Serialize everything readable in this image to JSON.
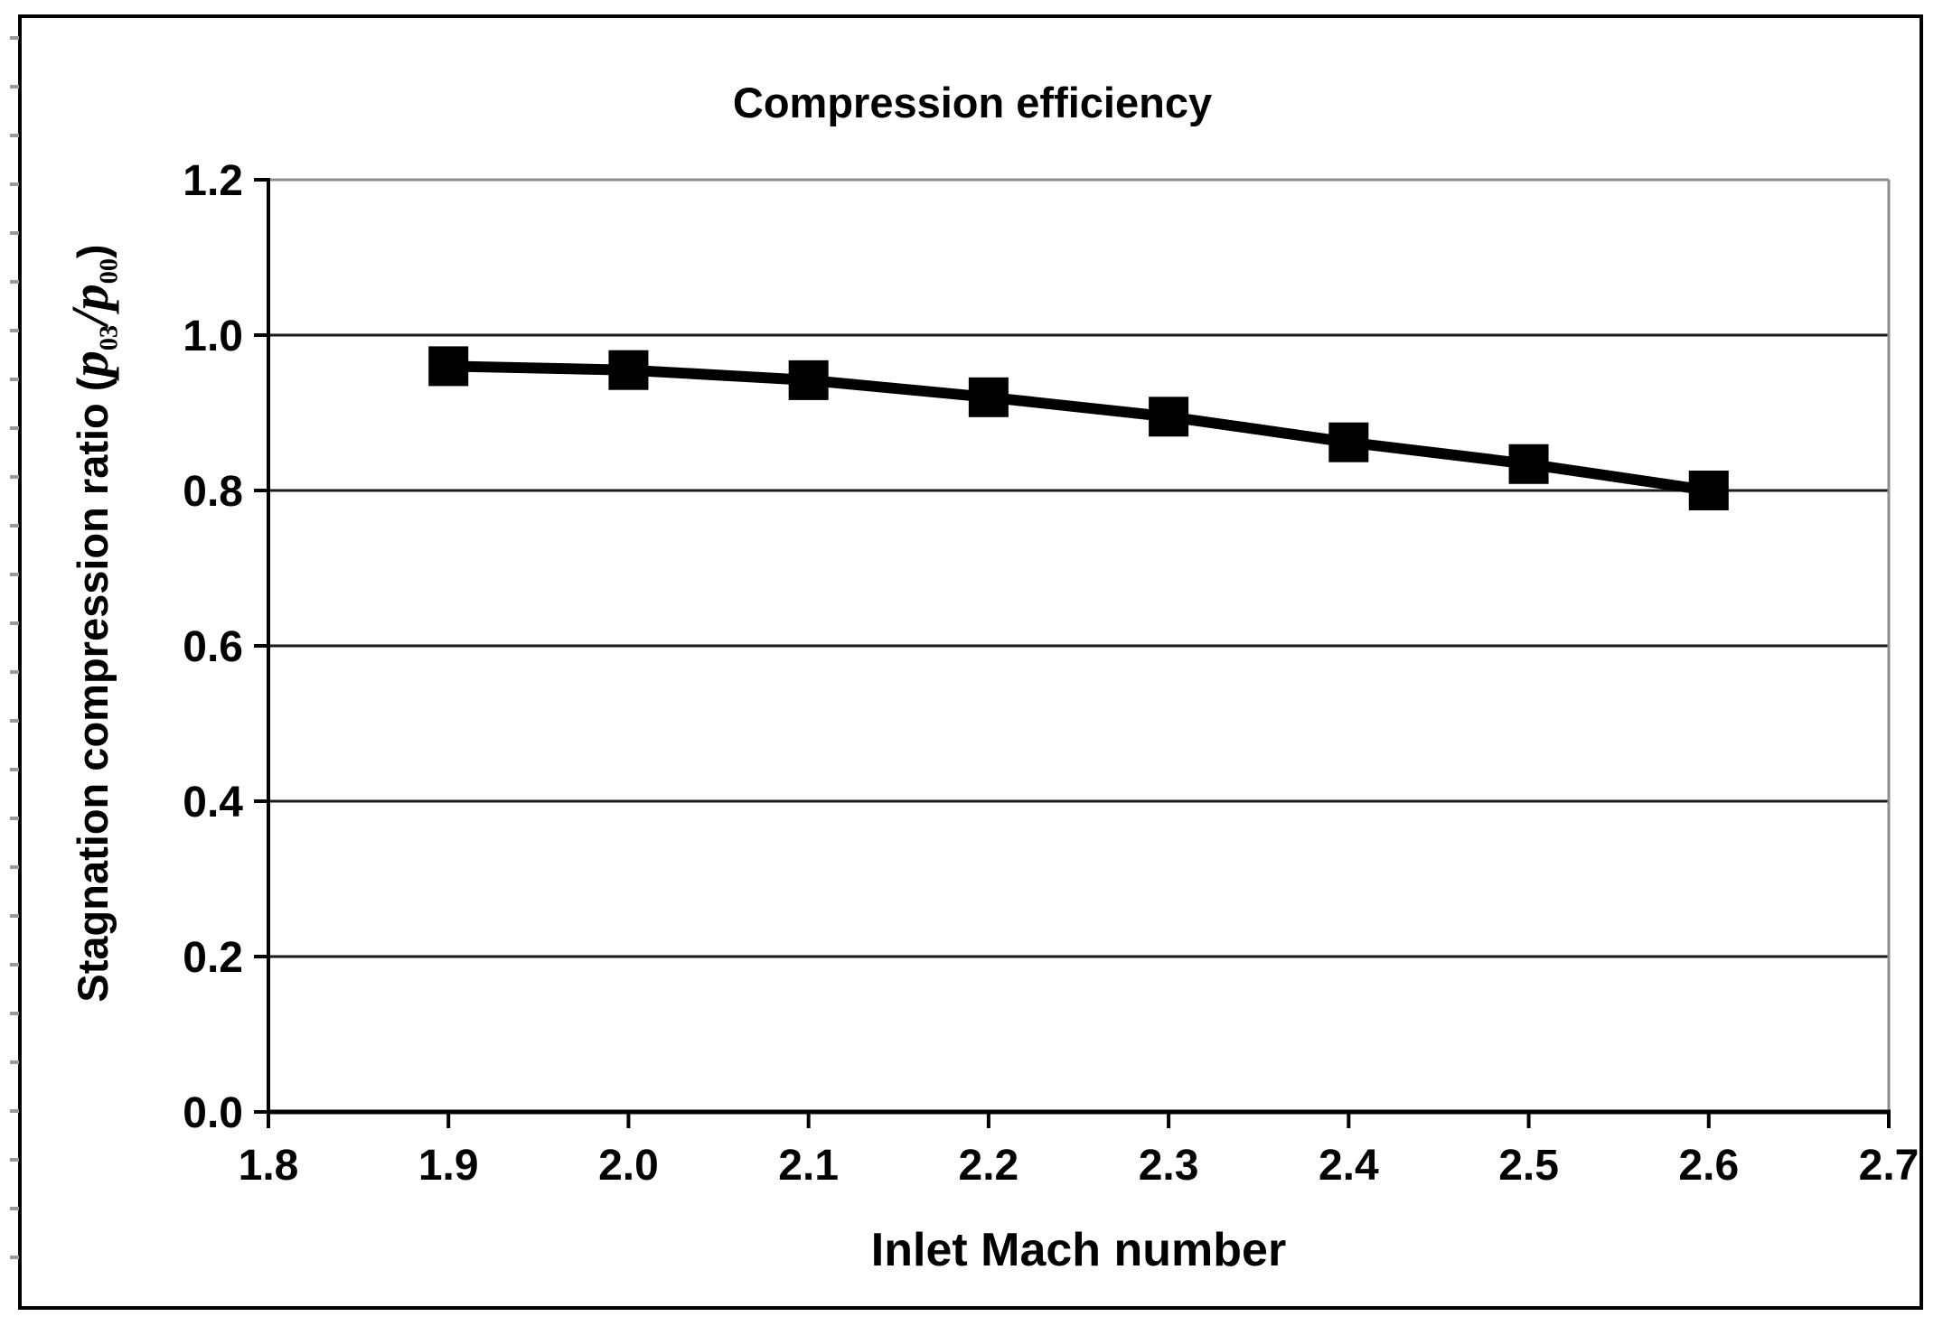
{
  "figure": {
    "title": "Compression efficiency"
  },
  "chart_data": {
    "type": "line",
    "title": "Compression efficiency",
    "xlabel": "Inlet Mach number",
    "ylabel": "Stagnation compression ratio (p03/p00)",
    "ylabel_parts": {
      "prefix": "Stagnation compression ratio (",
      "var1": "p",
      "sub1": "03",
      "slash": "/",
      "var2": "p",
      "sub2": "00",
      "suffix": ")"
    },
    "x": [
      1.9,
      2.0,
      2.1,
      2.2,
      2.3,
      2.4,
      2.5,
      2.6
    ],
    "y": [
      0.96,
      0.955,
      0.942,
      0.92,
      0.895,
      0.862,
      0.834,
      0.8
    ],
    "xlim": [
      1.8,
      2.7
    ],
    "ylim": [
      0.0,
      1.2
    ],
    "x_ticks": [
      "1.8",
      "1.9",
      "2.0",
      "2.1",
      "2.2",
      "2.3",
      "2.4",
      "2.5",
      "2.6",
      "2.7"
    ],
    "y_ticks": [
      "0.0",
      "0.2",
      "0.4",
      "0.6",
      "0.8",
      "1.0",
      "1.2"
    ],
    "grid": "horizontal",
    "legend": "none",
    "marker": "square",
    "colors": {
      "series": "#000000",
      "gridline": "#1a1a1a",
      "plot_border": "#8c8c8c",
      "frame_border": "#000000",
      "background": "#ffffff",
      "edge_ticks": "#9a9a9a"
    }
  }
}
